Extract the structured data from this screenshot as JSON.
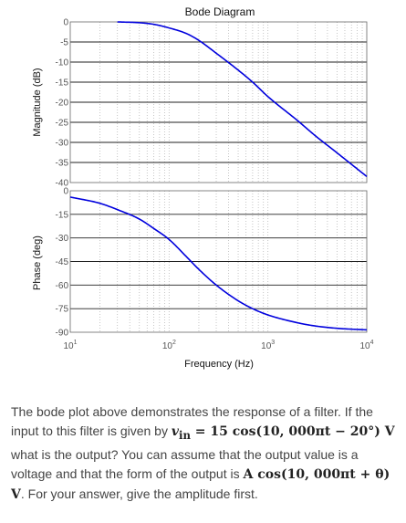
{
  "chart_data": {
    "type": "line",
    "title": "Bode Diagram",
    "xlabel": "Frequency (Hz)",
    "x_scale": "log",
    "xlim": [
      10,
      10000
    ],
    "x_ticks": [
      10,
      100,
      1000,
      10000
    ],
    "x_tick_labels": [
      {
        "base": "10",
        "exp": "1"
      },
      {
        "base": "10",
        "exp": "2"
      },
      {
        "base": "10",
        "exp": "3"
      },
      {
        "base": "10",
        "exp": "4"
      }
    ],
    "grid": true,
    "line_color": "#0000dd",
    "panels": [
      {
        "ylabel": "Magnitude (dB)",
        "ylim": [
          -40,
          0
        ],
        "y_ticks": [
          0,
          -5,
          -10,
          -15,
          -20,
          -25,
          -30,
          -35,
          -40
        ],
        "x": [
          30,
          50,
          70,
          100,
          150,
          200,
          300,
          500,
          700,
          1000,
          2000,
          3000,
          5000,
          10000
        ],
        "y": [
          0,
          -0.2,
          -0.6,
          -1.5,
          -2.9,
          -4.6,
          -7.8,
          -12.0,
          -15.0,
          -18.6,
          -24.6,
          -28.3,
          -32.6,
          -38.5
        ]
      },
      {
        "ylabel": "Phase (deg)",
        "ylim": [
          -90,
          0
        ],
        "y_ticks": [
          0,
          -15,
          -30,
          -45,
          -60,
          -75,
          -90
        ],
        "x": [
          10,
          20,
          30,
          50,
          70,
          100,
          150,
          200,
          300,
          500,
          700,
          1000,
          2000,
          3000,
          5000,
          10000
        ],
        "y": [
          -4,
          -8,
          -12,
          -18,
          -24,
          -31,
          -42,
          -50,
          -60,
          -70,
          -75,
          -79,
          -84,
          -86,
          -87.5,
          -88.5
        ]
      }
    ]
  },
  "question": {
    "line1": "The bode plot above demonstrates the response of a filter. If the input to this filter is given by",
    "eq1_lhs": "v",
    "eq1_sub": "in",
    "eq1_rhs": " = 15 cos(10, 000πt − 20°) V",
    "line2": "what is the output? You can assume that the output value is a voltage and that the form of the output is",
    "eq2": "A cos(10, 000πt + θ) V",
    "line3": ". For your answer, give the amplitude first."
  }
}
